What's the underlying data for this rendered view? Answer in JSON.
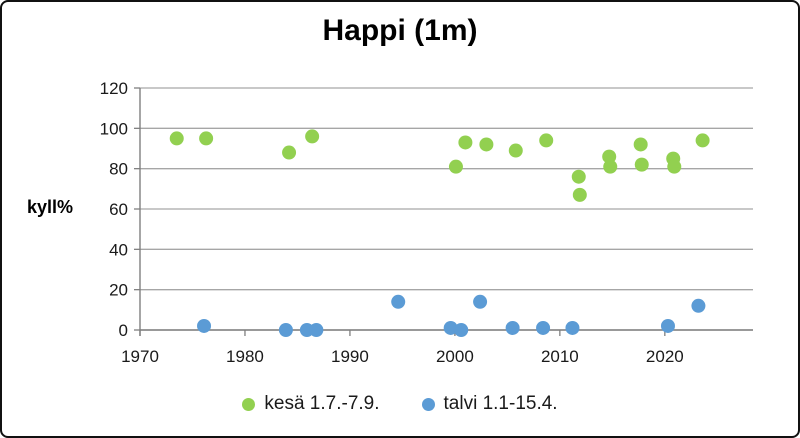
{
  "title": "Happi (1m)",
  "ylabel": "kyll%",
  "chart_data": {
    "type": "scatter",
    "title": "Happi (1m)",
    "xlabel": "",
    "ylabel": "kyll%",
    "xlim": [
      1970,
      2028.4
    ],
    "ylim": [
      0,
      120
    ],
    "x_ticks": [
      1970,
      1980,
      1990,
      2000,
      2010,
      2020
    ],
    "y_ticks": [
      0,
      20,
      40,
      60,
      80,
      100,
      120
    ],
    "grid": "horizontal-gridlines",
    "legend_position": "bottom",
    "marker": "circle",
    "series": [
      {
        "name": "kesä 1.7.-7.9.",
        "color": "#92d050",
        "points": [
          [
            1973.5,
            95
          ],
          [
            1976.3,
            95
          ],
          [
            1984.2,
            88
          ],
          [
            1986.4,
            96
          ],
          [
            2000.1,
            81
          ],
          [
            2001.0,
            93
          ],
          [
            2003.0,
            92
          ],
          [
            2005.8,
            89
          ],
          [
            2008.7,
            94
          ],
          [
            2011.8,
            76
          ],
          [
            2011.9,
            67
          ],
          [
            2014.7,
            86
          ],
          [
            2014.8,
            81
          ],
          [
            2017.7,
            92
          ],
          [
            2017.8,
            82
          ],
          [
            2020.8,
            85
          ],
          [
            2020.9,
            81
          ],
          [
            2023.6,
            94
          ]
        ]
      },
      {
        "name": "talvi 1.1-15.4.",
        "color": "#5b9bd5",
        "points": [
          [
            1976.1,
            2
          ],
          [
            1983.9,
            0
          ],
          [
            1985.9,
            0
          ],
          [
            1986.8,
            0
          ],
          [
            1994.6,
            14
          ],
          [
            1999.6,
            1
          ],
          [
            2000.6,
            0
          ],
          [
            2002.4,
            14
          ],
          [
            2005.5,
            1
          ],
          [
            2008.4,
            1
          ],
          [
            2011.2,
            1
          ],
          [
            2020.3,
            2
          ],
          [
            2023.2,
            12
          ]
        ]
      }
    ]
  },
  "style": {
    "gridline_color": "#a6a6a6",
    "axis_color": "#7f7f7f",
    "tick_label_color": "#1a1a1a"
  }
}
